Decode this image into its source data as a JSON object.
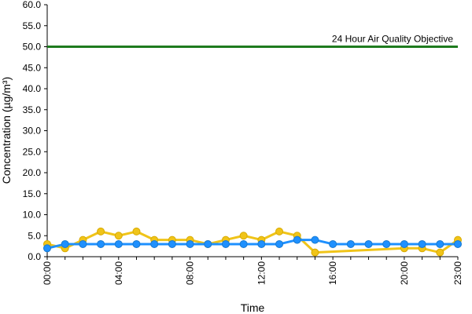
{
  "chart_data": {
    "type": "line",
    "xlabel": "Time",
    "ylabel": "Concentration (µg/m³)",
    "ylim": [
      0,
      60
    ],
    "yticks": [
      "0.0",
      "5.0",
      "10.0",
      "15.0",
      "20.0",
      "25.0",
      "30.0",
      "35.0",
      "40.0",
      "45.0",
      "50.0",
      "55.0",
      "60.0"
    ],
    "xlim": [
      0,
      23
    ],
    "xticks": [
      {
        "hour": 0,
        "label": "00:00"
      },
      {
        "hour": 4,
        "label": "04:00"
      },
      {
        "hour": 8,
        "label": "08:00"
      },
      {
        "hour": 12,
        "label": "12:00"
      },
      {
        "hour": 16,
        "label": "16:00"
      },
      {
        "hour": 20,
        "label": "20:00"
      },
      {
        "hour": 23,
        "label": "23:00"
      }
    ],
    "grid": false,
    "reference_line": {
      "value": 50,
      "label": "24 Hour Air Quality Objective",
      "color": "#1e7b1e"
    },
    "series": [
      {
        "color": "#f0c419",
        "points": [
          [
            0,
            3
          ],
          [
            1,
            2
          ],
          [
            2,
            4
          ],
          [
            3,
            6
          ],
          [
            4,
            5
          ],
          [
            5,
            6
          ],
          [
            6,
            4
          ],
          [
            7,
            4
          ],
          [
            8,
            4
          ],
          [
            9,
            3
          ],
          [
            10,
            4
          ],
          [
            11,
            5
          ],
          [
            12,
            4
          ],
          [
            13,
            6
          ],
          [
            14,
            5
          ],
          [
            15,
            1
          ],
          [
            20,
            2
          ],
          [
            21,
            2
          ],
          [
            22,
            1
          ],
          [
            23,
            4
          ]
        ]
      },
      {
        "color": "#1e90ff",
        "points": [
          [
            0,
            2
          ],
          [
            1,
            3
          ],
          [
            2,
            3
          ],
          [
            3,
            3
          ],
          [
            4,
            3
          ],
          [
            5,
            3
          ],
          [
            6,
            3
          ],
          [
            7,
            3
          ],
          [
            8,
            3
          ],
          [
            9,
            3
          ],
          [
            10,
            3
          ],
          [
            11,
            3
          ],
          [
            12,
            3
          ],
          [
            13,
            3
          ],
          [
            14,
            4
          ],
          [
            15,
            4
          ],
          [
            16,
            3
          ],
          [
            17,
            3
          ],
          [
            18,
            3
          ],
          [
            19,
            3
          ],
          [
            20,
            3
          ],
          [
            21,
            3
          ],
          [
            22,
            3
          ],
          [
            23,
            3
          ]
        ]
      }
    ]
  }
}
